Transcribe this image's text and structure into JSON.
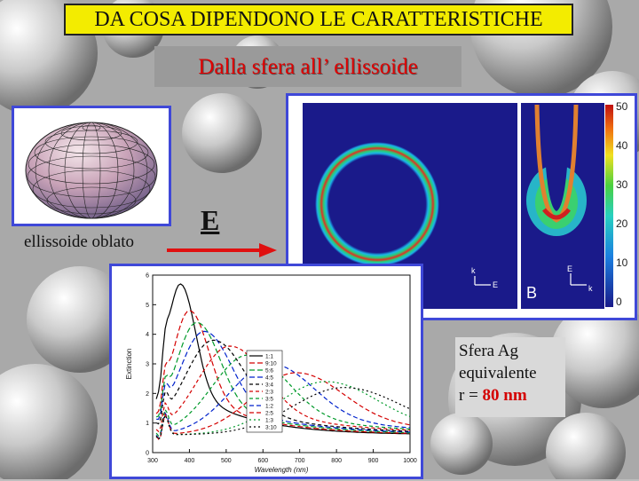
{
  "slide": {
    "title": "DA COSA DIPENDONO LE CARATTERISTICHE",
    "subtitle": "Dalla sfera all’ ellissoide",
    "ellipsoid_label": "ellissoide oblato",
    "field_label": "E",
    "note_line1": "Sfera Ag",
    "note_line2": "equivalente",
    "note_prefix": "r = ",
    "note_value": "80 nm"
  },
  "field_map": {
    "colorbar_ticks": [
      "50",
      "40",
      "30",
      "20",
      "10",
      "0"
    ],
    "panel_b_label": "B",
    "k_label": "k",
    "e_label": "E"
  },
  "chart_data": {
    "type": "line",
    "xlabel": "Wavelength (nm)",
    "ylabel": "Extinction",
    "xlim": [
      300,
      1000
    ],
    "ylim": [
      0,
      6
    ],
    "x_ticks": [
      "300",
      "400",
      "500",
      "600",
      "700",
      "800",
      "900",
      "1000"
    ],
    "y_ticks": [
      "0",
      "1",
      "2",
      "3",
      "4",
      "5",
      "6"
    ],
    "legend_entries": [
      "1:1",
      "9:10",
      "5:6",
      "4:5",
      "3:4",
      "2:3",
      "3:5",
      "1:2",
      "2:5",
      "1:3",
      "3:10"
    ],
    "series": [
      {
        "name": "1:1",
        "peak_x": 375,
        "peak_y": 5.1
      },
      {
        "name": "9:10",
        "peak_x": 400,
        "peak_y": 4.2
      },
      {
        "name": "5:6",
        "peak_x": 420,
        "peak_y": 3.8
      },
      {
        "name": "4:5",
        "peak_x": 440,
        "peak_y": 3.5
      },
      {
        "name": "3:4",
        "peak_x": 465,
        "peak_y": 3.2
      },
      {
        "name": "2:3",
        "peak_x": 510,
        "peak_y": 3.0
      },
      {
        "name": "3:5",
        "peak_x": 560,
        "peak_y": 2.7
      },
      {
        "name": "1:2",
        "peak_x": 620,
        "peak_y": 2.4
      },
      {
        "name": "2:5",
        "peak_x": 690,
        "peak_y": 2.1
      },
      {
        "name": "1:3",
        "peak_x": 770,
        "peak_y": 1.8
      },
      {
        "name": "3:10",
        "peak_x": 820,
        "peak_y": 1.6
      }
    ],
    "colors": [
      "#000000",
      "#d40000",
      "#009a2a",
      "#0022cc",
      "#000000",
      "#d40000",
      "#009a2a",
      "#0022cc",
      "#d40000",
      "#009a2a",
      "#000000"
    ],
    "legend_position": "center"
  }
}
